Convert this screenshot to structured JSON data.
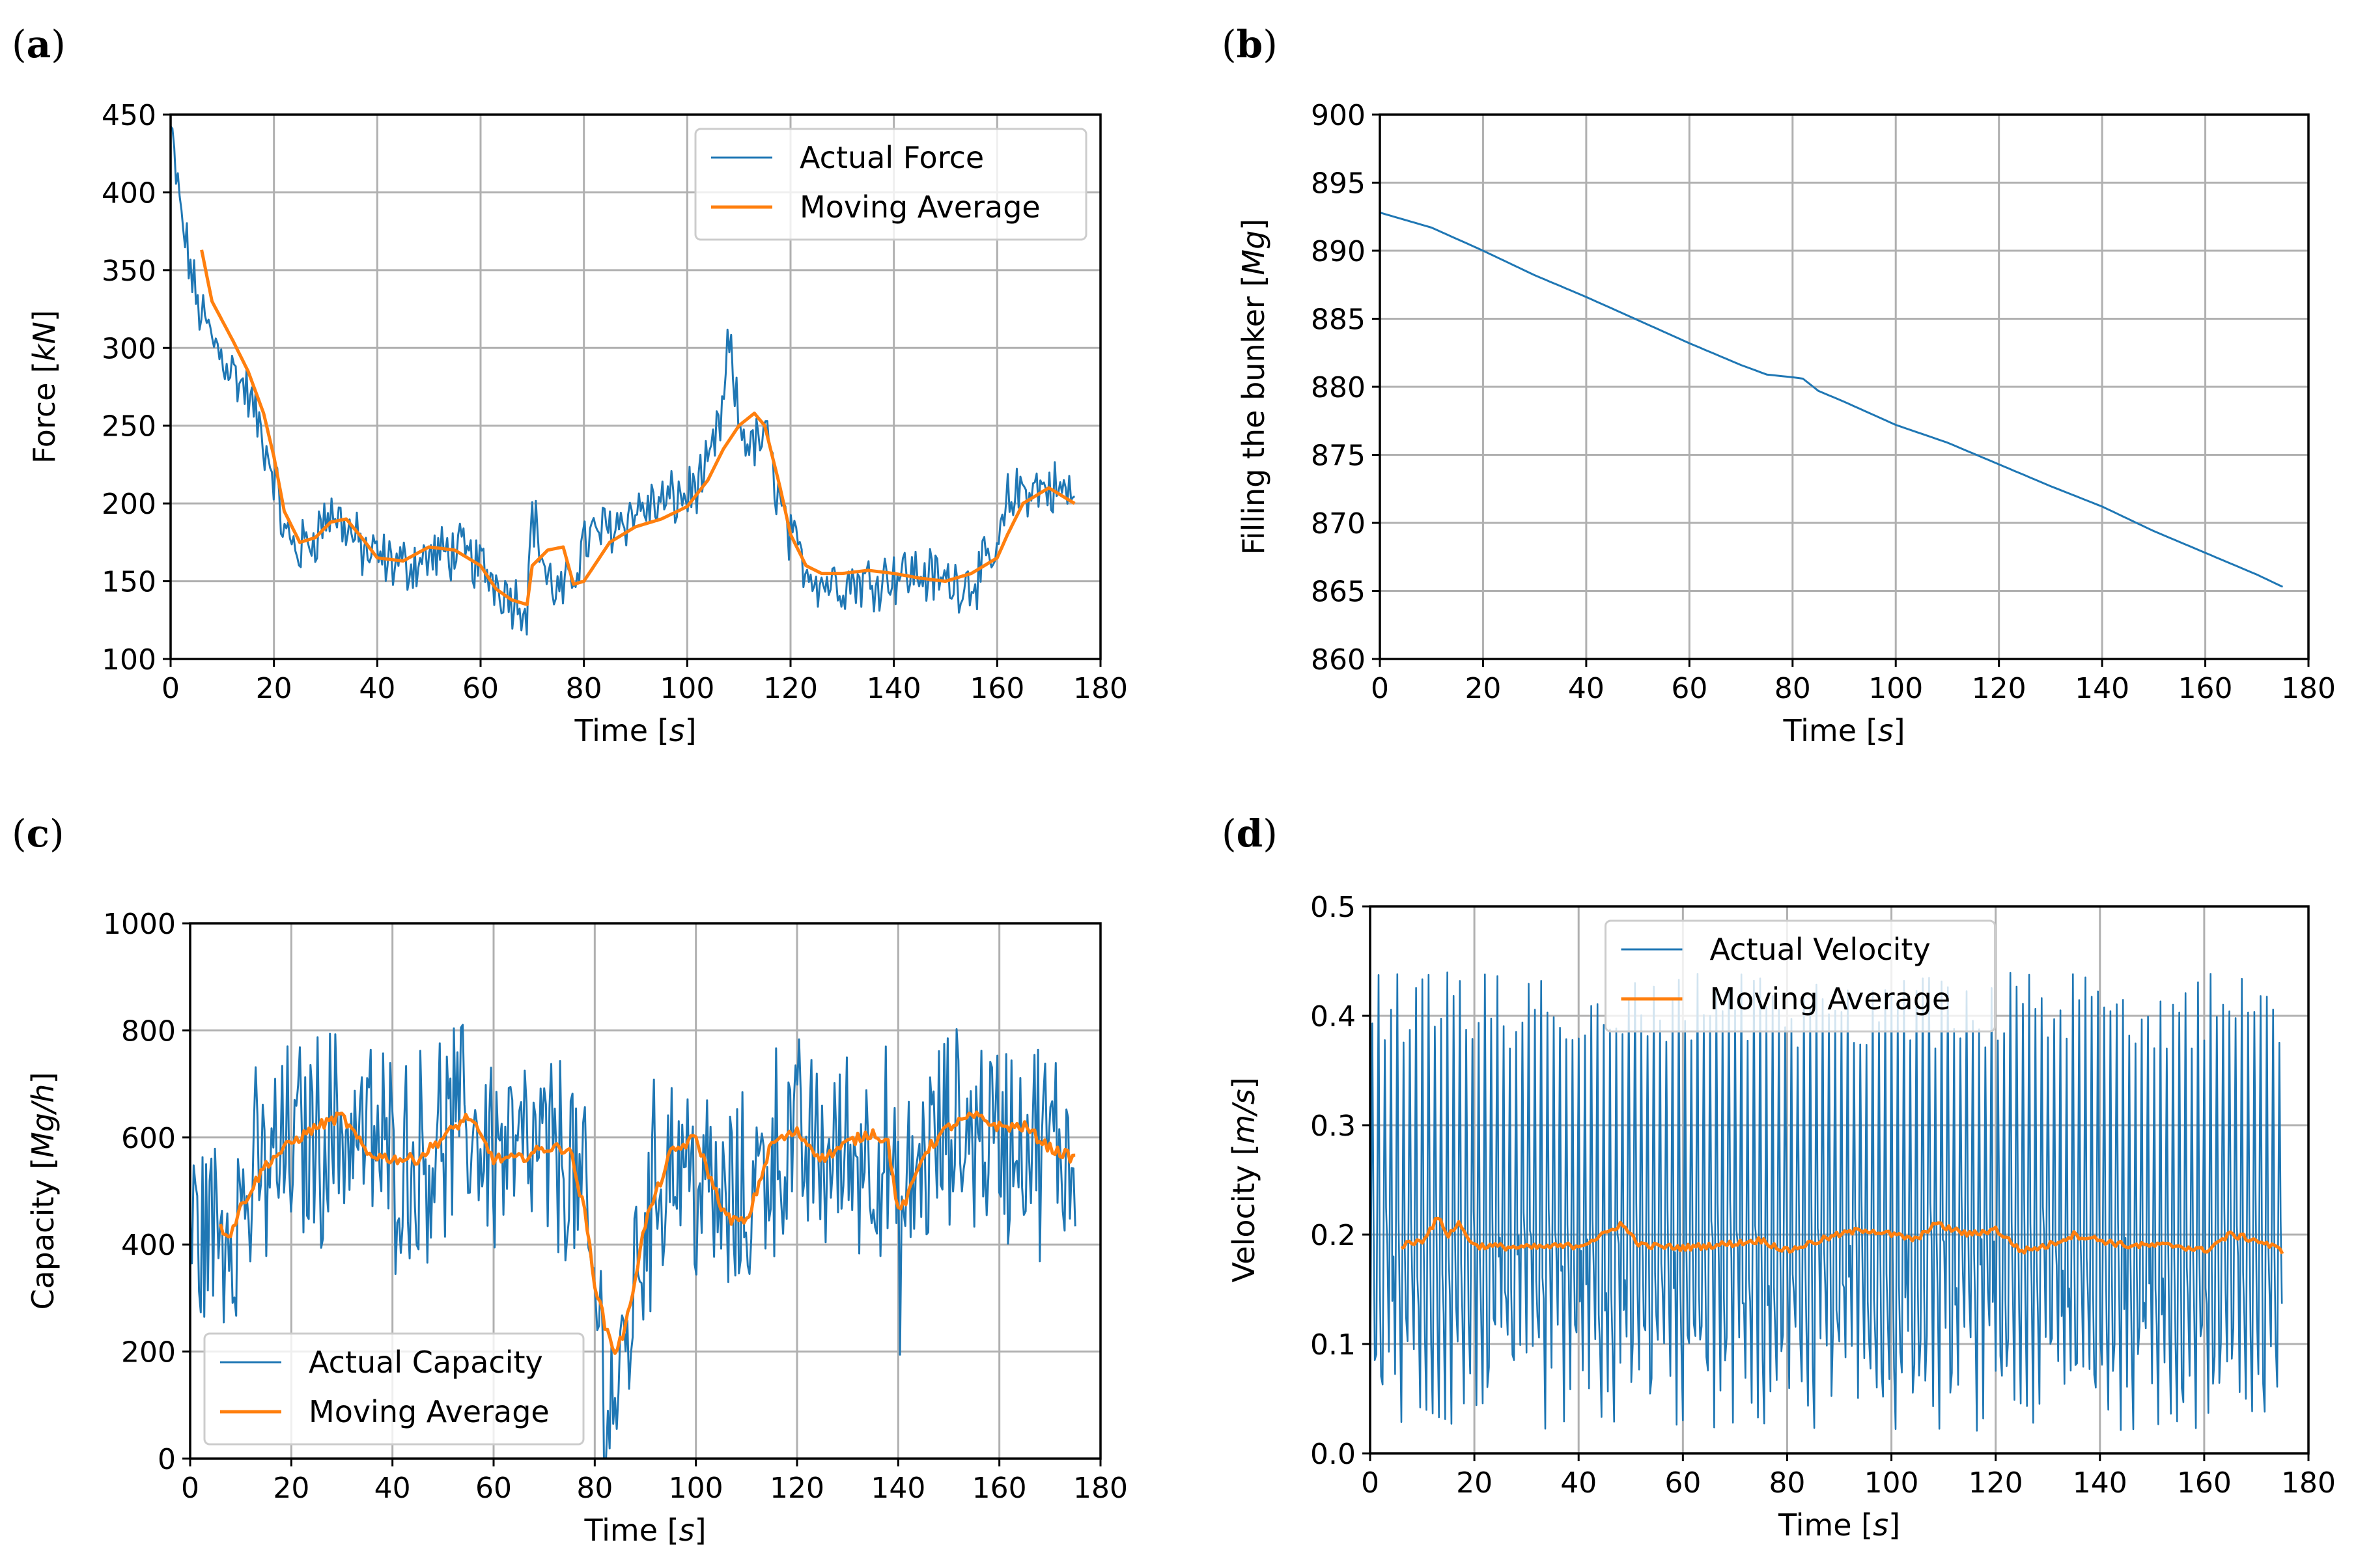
{
  "figure": {
    "panels": [
      "a",
      "b",
      "c",
      "d"
    ]
  },
  "colors": {
    "actual": "#1f77b4",
    "average": "#ff7f0e",
    "grid": "#b0b0b0"
  },
  "chart_data": [
    {
      "panel": "a",
      "type": "line",
      "title": "",
      "xlabel": "Time [s]",
      "ylabel": "Force [kN]",
      "xlim": [
        0,
        180
      ],
      "ylim": [
        100,
        450
      ],
      "xticks": [
        0,
        20,
        40,
        60,
        80,
        100,
        120,
        140,
        160,
        180
      ],
      "yticks": [
        100,
        150,
        200,
        250,
        300,
        350,
        400,
        450
      ],
      "legend_position": "upper-right",
      "series": [
        {
          "name": "Actual Force",
          "style": "noisy",
          "x": [
            0,
            2,
            5,
            8,
            12,
            15,
            18,
            20,
            22,
            25,
            28,
            31,
            34,
            37,
            40,
            45,
            50,
            55,
            60,
            63,
            66,
            69,
            70,
            73,
            76,
            78,
            80,
            85,
            90,
            95,
            100,
            104,
            107,
            108,
            110,
            113,
            115,
            118,
            120,
            123,
            126,
            130,
            135,
            140,
            145,
            150,
            155,
            160,
            162,
            165,
            170,
            175
          ],
          "values": [
            440,
            385,
            330,
            305,
            285,
            270,
            240,
            220,
            180,
            170,
            180,
            195,
            185,
            170,
            165,
            160,
            165,
            170,
            160,
            150,
            140,
            135,
            195,
            150,
            140,
            155,
            175,
            185,
            195,
            200,
            205,
            220,
            260,
            305,
            250,
            235,
            245,
            200,
            175,
            160,
            150,
            150,
            150,
            155,
            155,
            150,
            150,
            165,
            200,
            210,
            210,
            205
          ],
          "amplitude": 16
        },
        {
          "name": "Moving Average",
          "style": "smooth",
          "x": [
            6,
            8,
            12,
            15,
            18,
            20,
            22,
            25,
            28,
            31,
            34,
            37,
            40,
            45,
            50,
            55,
            60,
            63,
            66,
            69,
            70,
            73,
            76,
            78,
            80,
            85,
            90,
            95,
            100,
            104,
            107,
            110,
            113,
            115,
            118,
            120,
            123,
            126,
            130,
            135,
            140,
            145,
            150,
            155,
            160,
            162,
            165,
            170,
            175
          ],
          "values": [
            363,
            330,
            305,
            285,
            258,
            230,
            195,
            175,
            178,
            188,
            190,
            178,
            165,
            163,
            172,
            170,
            160,
            145,
            138,
            135,
            160,
            170,
            172,
            148,
            150,
            175,
            185,
            190,
            198,
            215,
            235,
            250,
            258,
            250,
            210,
            180,
            160,
            155,
            155,
            157,
            155,
            152,
            150,
            155,
            165,
            180,
            200,
            210,
            200
          ]
        }
      ]
    },
    {
      "panel": "b",
      "type": "line",
      "title": "",
      "xlabel": "Time [s]",
      "ylabel": "Filling the bunker [Mg]",
      "xlim": [
        0,
        180
      ],
      "ylim": [
        860,
        900
      ],
      "xticks": [
        0,
        20,
        40,
        60,
        80,
        100,
        120,
        140,
        160,
        180
      ],
      "yticks": [
        860,
        865,
        870,
        875,
        880,
        885,
        890,
        895,
        900
      ],
      "legend_position": "none",
      "series": [
        {
          "name": "Filling the bunker",
          "style": "smooth",
          "x": [
            0,
            10,
            20,
            30,
            40,
            50,
            60,
            70,
            75,
            80,
            82,
            85,
            90,
            100,
            110,
            120,
            130,
            140,
            150,
            160,
            170,
            175
          ],
          "values": [
            892.8,
            891.7,
            890.0,
            888.2,
            886.6,
            884.9,
            883.2,
            881.6,
            880.9,
            880.7,
            880.6,
            879.7,
            878.9,
            877.2,
            875.9,
            874.3,
            872.7,
            871.2,
            869.4,
            867.8,
            866.2,
            865.3
          ]
        }
      ]
    },
    {
      "panel": "c",
      "type": "line",
      "title": "",
      "xlabel": "Time [s]",
      "ylabel": "Capacity [Mg/h]",
      "xlim": [
        0,
        180
      ],
      "ylim": [
        0,
        1000
      ],
      "xticks": [
        0,
        20,
        40,
        60,
        80,
        100,
        120,
        140,
        160,
        180
      ],
      "yticks": [
        0,
        200,
        400,
        600,
        800,
        1000
      ],
      "legend_position": "lower-left",
      "series": [
        {
          "name": "Actual Capacity",
          "style": "noisy",
          "x": [
            0,
            5,
            10,
            15,
            20,
            25,
            30,
            35,
            40,
            45,
            50,
            55,
            60,
            65,
            70,
            75,
            78,
            80,
            82,
            84,
            86,
            90,
            95,
            100,
            105,
            110,
            115,
            120,
            125,
            130,
            135,
            138,
            140,
            142,
            145,
            150,
            155,
            160,
            165,
            170,
            175
          ],
          "values": [
            420,
            430,
            470,
            540,
            580,
            600,
            620,
            600,
            560,
            560,
            600,
            620,
            580,
            560,
            560,
            560,
            450,
            300,
            150,
            100,
            200,
            450,
            580,
            520,
            460,
            470,
            580,
            580,
            560,
            570,
            580,
            560,
            400,
            480,
            560,
            600,
            620,
            600,
            600,
            580,
            570
          ],
          "amplitude": 170
        },
        {
          "name": "Moving Average",
          "style": "smooth",
          "x": [
            6,
            8,
            10,
            15,
            20,
            25,
            30,
            35,
            40,
            45,
            50,
            55,
            60,
            65,
            70,
            75,
            78,
            80,
            82,
            84,
            86,
            90,
            95,
            100,
            103,
            106,
            110,
            115,
            120,
            125,
            130,
            135,
            138,
            140,
            142,
            145,
            150,
            155,
            160,
            165,
            170,
            175
          ],
          "values": [
            430,
            420,
            470,
            550,
            590,
            620,
            640,
            570,
            560,
            560,
            600,
            640,
            560,
            560,
            580,
            580,
            460,
            330,
            250,
            200,
            240,
            440,
            570,
            600,
            520,
            450,
            440,
            590,
            610,
            560,
            590,
            610,
            590,
            460,
            490,
            570,
            620,
            640,
            620,
            620,
            580,
            560
          ]
        }
      ]
    },
    {
      "panel": "d",
      "type": "line",
      "title": "",
      "xlabel": "Time [s]",
      "ylabel": "Velocity [m/s]",
      "xlim": [
        0,
        180
      ],
      "ylim": [
        0.0,
        0.5
      ],
      "xticks": [
        0,
        20,
        40,
        60,
        80,
        100,
        120,
        140,
        160,
        180
      ],
      "yticks": [
        0.0,
        0.1,
        0.2,
        0.3,
        0.4,
        0.5
      ],
      "ytick_labels": [
        "0.0",
        "0.1",
        "0.2",
        "0.3",
        "0.4",
        "0.5"
      ],
      "legend_position": "upper-center",
      "series": [
        {
          "name": "Actual Velocity",
          "style": "oscillating",
          "x": [
            0,
            175
          ],
          "period_s": 1.2,
          "peak_range": [
            0.37,
            0.44
          ],
          "trough_range": [
            0.02,
            0.12
          ]
        },
        {
          "name": "Moving Average",
          "style": "smooth",
          "x": [
            6,
            10,
            13,
            15,
            17,
            20,
            30,
            40,
            45,
            48,
            52,
            60,
            70,
            75,
            80,
            83,
            90,
            95,
            100,
            105,
            108,
            115,
            120,
            125,
            130,
            135,
            140,
            145,
            150,
            155,
            160,
            165,
            170,
            175
          ],
          "values": [
            0.19,
            0.195,
            0.215,
            0.2,
            0.21,
            0.19,
            0.188,
            0.19,
            0.2,
            0.21,
            0.19,
            0.188,
            0.192,
            0.195,
            0.185,
            0.19,
            0.2,
            0.205,
            0.2,
            0.195,
            0.21,
            0.2,
            0.205,
            0.185,
            0.19,
            0.2,
            0.195,
            0.19,
            0.19,
            0.19,
            0.185,
            0.2,
            0.195,
            0.185
          ]
        }
      ]
    }
  ]
}
